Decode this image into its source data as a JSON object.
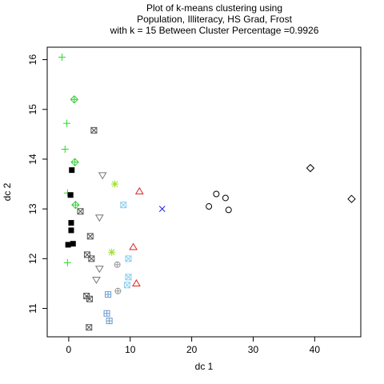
{
  "chart_data": {
    "type": "scatter",
    "title_lines": [
      "Plot of k-means clustering using",
      "Population, Illiteracy, HS Grad, Frost",
      "with  k = 15 Between Cluster Percentage =0.9926"
    ],
    "xlabel": "dc 1",
    "ylabel": "dc 2",
    "xlim": [
      -3.5,
      47.5
    ],
    "ylim": [
      10.43,
      16.25
    ],
    "x_ticks": [
      0,
      10,
      20,
      30,
      40
    ],
    "y_ticks": [
      11,
      12,
      13,
      14,
      15,
      16
    ],
    "grid": false,
    "legend": "none",
    "clusters": [
      {
        "symbol": "square-x",
        "color": "#555555",
        "points": [
          [
            4.1,
            14.58
          ],
          [
            1.9,
            12.95
          ],
          [
            3.5,
            12.45
          ],
          [
            3.0,
            12.08
          ],
          [
            3.7,
            12.0
          ],
          [
            2.9,
            11.25
          ],
          [
            3.4,
            11.19
          ],
          [
            3.3,
            10.62
          ]
        ]
      },
      {
        "symbol": "plus",
        "color": "#22dd22",
        "points": [
          [
            -1.1,
            16.05
          ],
          [
            -0.3,
            14.72
          ],
          [
            -0.6,
            14.2
          ],
          [
            -0.2,
            13.32
          ],
          [
            -0.2,
            11.92
          ]
        ]
      },
      {
        "symbol": "diamond-plus",
        "color": "#33cc33",
        "points": [
          [
            0.9,
            15.2
          ],
          [
            1.0,
            13.94
          ],
          [
            1.1,
            13.08
          ]
        ]
      },
      {
        "symbol": "filled-square",
        "color": "#000000",
        "points": [
          [
            0.5,
            13.78
          ],
          [
            0.3,
            13.28
          ],
          [
            0.4,
            12.72
          ],
          [
            0.4,
            12.57
          ],
          [
            0.7,
            12.3
          ],
          [
            -0.1,
            12.28
          ]
        ]
      },
      {
        "symbol": "triangle-down",
        "color": "#777777",
        "points": [
          [
            5.5,
            13.68
          ],
          [
            5.0,
            12.83
          ],
          [
            5.0,
            11.8
          ],
          [
            4.5,
            11.58
          ]
        ]
      },
      {
        "symbol": "asterisk",
        "color": "#99dd22",
        "points": [
          [
            7.5,
            13.5
          ],
          [
            7.0,
            12.13
          ]
        ]
      },
      {
        "symbol": "triangle-up",
        "color": "#dd2222",
        "points": [
          [
            11.5,
            13.35
          ],
          [
            10.5,
            12.23
          ],
          [
            11.0,
            11.5
          ]
        ]
      },
      {
        "symbol": "square-x",
        "color": "#88ccee",
        "points": [
          [
            8.9,
            13.08
          ],
          [
            9.7,
            12.0
          ],
          [
            9.7,
            11.63
          ],
          [
            9.5,
            11.47
          ]
        ]
      },
      {
        "symbol": "x",
        "color": "#2222dd",
        "points": [
          [
            15.2,
            13.0
          ]
        ]
      },
      {
        "symbol": "circle",
        "color": "#000000",
        "points": [
          [
            24.0,
            13.3
          ],
          [
            25.5,
            13.22
          ],
          [
            22.8,
            13.05
          ],
          [
            26.0,
            12.98
          ]
        ]
      },
      {
        "symbol": "diamond",
        "color": "#000000",
        "points": [
          [
            39.3,
            13.82
          ],
          [
            46.0,
            13.2
          ]
        ]
      },
      {
        "symbol": "circle-plus",
        "color": "#999999",
        "points": [
          [
            7.9,
            11.88
          ],
          [
            8.0,
            11.35
          ]
        ]
      },
      {
        "symbol": "square-plus",
        "color": "#6699cc",
        "points": [
          [
            6.4,
            11.28
          ],
          [
            6.2,
            10.9
          ],
          [
            6.6,
            10.75
          ]
        ]
      }
    ]
  }
}
